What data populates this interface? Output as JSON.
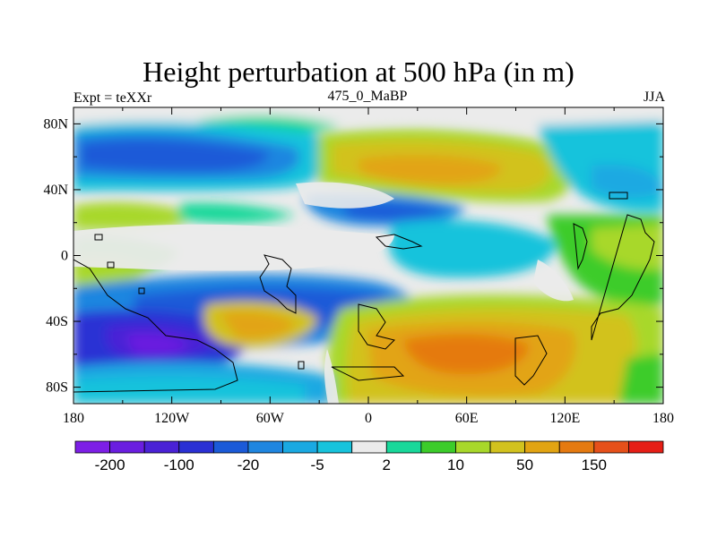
{
  "chart_data": {
    "type": "heatmap",
    "title": "Height perturbation at 500 hPa (in m)",
    "left_string": "Expt = teXXr",
    "center_string": "475_0_MaBP",
    "right_string": "JJA",
    "xlim": [
      -180,
      180
    ],
    "ylim": [
      -90,
      90
    ],
    "x_ticks": [
      "180",
      "120W",
      "60W",
      "0",
      "60E",
      "120E",
      "180"
    ],
    "y_ticks": [
      "80N",
      "40N",
      "0",
      "40S",
      "80S"
    ],
    "colorbar": {
      "colors": [
        "#7d1fe6",
        "#6a1ee0",
        "#4a22d6",
        "#2a30d4",
        "#1b5ad8",
        "#1f86e0",
        "#1aa9e2",
        "#17c3dc",
        "#ebebeb",
        "#18d89a",
        "#3ccc2a",
        "#a8d82a",
        "#d2c21e",
        "#e2a412",
        "#e57a10",
        "#e6501a",
        "#e61e16"
      ],
      "labels": [
        "-200",
        "-100",
        "-20",
        "-5",
        "2",
        "10",
        "50",
        "150"
      ]
    }
  }
}
